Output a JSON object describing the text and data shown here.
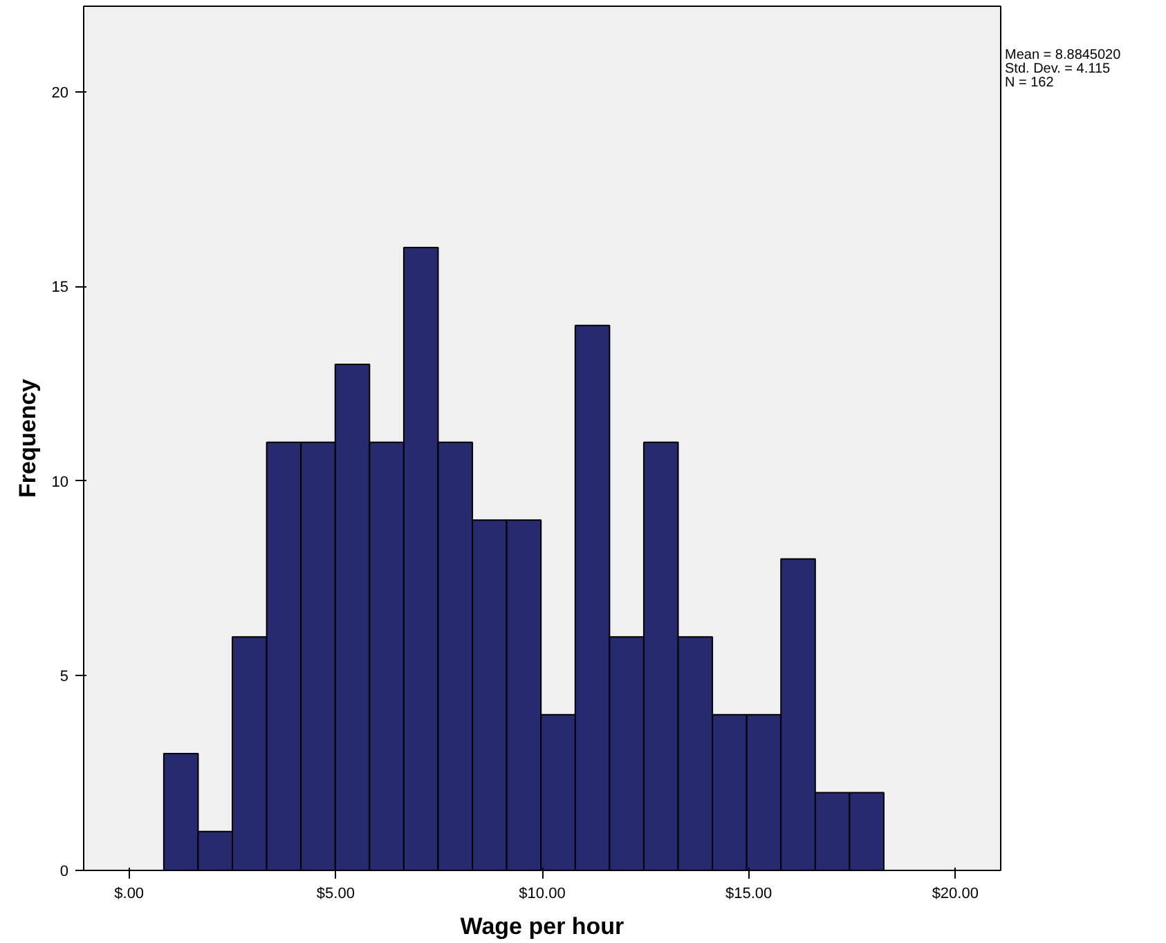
{
  "chart_data": {
    "type": "histogram",
    "xlabel": "Wage per hour",
    "ylabel": "Frequency",
    "bins": [
      0.84,
      1.67,
      2.5,
      3.33,
      4.16,
      4.99,
      5.82,
      6.65,
      7.48,
      8.31,
      9.14,
      9.97,
      10.8,
      11.63,
      12.46,
      13.29,
      14.12,
      14.95,
      15.78,
      16.61,
      17.44,
      18.27
    ],
    "values": [
      3,
      1,
      6,
      11,
      11,
      13,
      11,
      16,
      11,
      9,
      9,
      4,
      14,
      6,
      11,
      6,
      4,
      4,
      8,
      2,
      2
    ],
    "color": "#262a6e",
    "xlim": [
      -1.1,
      21.1
    ],
    "ylim": [
      0,
      22.2
    ],
    "xticks": [
      {
        "value": 0,
        "label": "$.00"
      },
      {
        "value": 5,
        "label": "$5.00"
      },
      {
        "value": 10,
        "label": "$10.00"
      },
      {
        "value": 15,
        "label": "$15.00"
      },
      {
        "value": 20,
        "label": "$20.00"
      }
    ],
    "yticks": [
      0,
      5,
      10,
      15,
      20
    ],
    "grid": false,
    "annotations": [
      "Mean = 8.8845020",
      "Std. Dev. = 4.115",
      "N = 162"
    ]
  }
}
